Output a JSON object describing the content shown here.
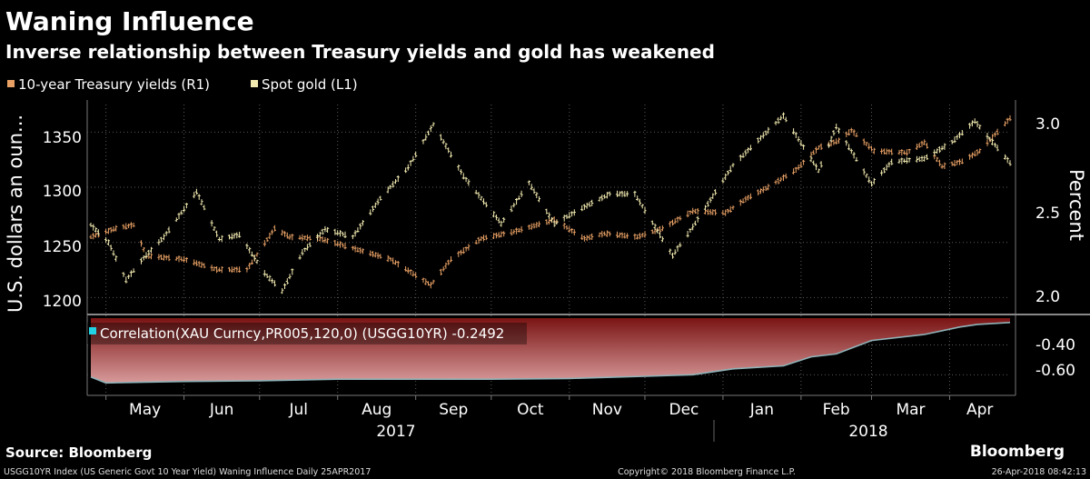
{
  "header": {
    "title": "Waning Influence",
    "subtitle": "Inverse relationship between Treasury yields and gold has weakened"
  },
  "legend": {
    "items": [
      {
        "label": "10-year Treasury yields (R1)",
        "color": "#e8a065"
      },
      {
        "label": "Spot gold (L1)",
        "color": "#f2eab0"
      }
    ]
  },
  "colors": {
    "background": "#000000",
    "yields": "#e8a065",
    "gold": "#f2eab0",
    "correlation_fill": "#7a1414",
    "correlation_line": "#8fb3b8",
    "correlation_marker": "#22d3e6",
    "grid": "#5a5a5a",
    "axis_text": "#ffffff"
  },
  "footer": {
    "source": "Source: Bloomberg",
    "index_line": "USGG10YR Index (US Generic Govt 10 Year Yield) Waning Influence  Daily 25APR2017",
    "copyright": "Copyright© 2018 Bloomberg Finance L.P.",
    "timestamp": "26-Apr-2018 08:42:13",
    "brand": "Bloomberg"
  },
  "chart_data": [
    {
      "type": "line",
      "title": "Waning Influence",
      "ylabel_left": "U.S. dollars an oun...",
      "ylabel_right": "Percent",
      "ylim_left": [
        1188,
        1375
      ],
      "ylim_right": [
        1.9,
        3.1
      ],
      "yticks_left": [
        "1200",
        "1250",
        "1300",
        "1350"
      ],
      "yticks_right": [
        "2.0",
        "2.5",
        "3.0"
      ],
      "x_start": "2017-04-25",
      "x_end": "2018-04-25",
      "month_labels": [
        "May",
        "Jun",
        "Jul",
        "Aug",
        "Sep",
        "Oct",
        "Nov",
        "Dec",
        "Jan",
        "Feb",
        "Mar",
        "Apr"
      ],
      "year_labels": [
        "2017",
        "2018"
      ],
      "series": [
        {
          "name": "10-year Treasury yields (R1)",
          "axis": "right",
          "points": [
            [
              "2017-04-25",
              2.33
            ],
            [
              "2017-05-05",
              2.38
            ],
            [
              "2017-05-12",
              2.4
            ],
            [
              "2017-05-17",
              2.22
            ],
            [
              "2017-06-01",
              2.2
            ],
            [
              "2017-06-14",
              2.14
            ],
            [
              "2017-06-26",
              2.14
            ],
            [
              "2017-07-07",
              2.38
            ],
            [
              "2017-07-13",
              2.33
            ],
            [
              "2017-07-25",
              2.32
            ],
            [
              "2017-08-08",
              2.26
            ],
            [
              "2017-08-22",
              2.2
            ],
            [
              "2017-09-07",
              2.05
            ],
            [
              "2017-09-15",
              2.2
            ],
            [
              "2017-09-27",
              2.32
            ],
            [
              "2017-10-10",
              2.36
            ],
            [
              "2017-10-26",
              2.43
            ],
            [
              "2017-11-07",
              2.32
            ],
            [
              "2017-11-15",
              2.35
            ],
            [
              "2017-11-28",
              2.33
            ],
            [
              "2017-12-08",
              2.38
            ],
            [
              "2017-12-20",
              2.48
            ],
            [
              "2018-01-02",
              2.47
            ],
            [
              "2018-01-10",
              2.55
            ],
            [
              "2018-01-19",
              2.62
            ],
            [
              "2018-01-30",
              2.72
            ],
            [
              "2018-02-08",
              2.85
            ],
            [
              "2018-02-16",
              2.89
            ],
            [
              "2018-02-21",
              2.95
            ],
            [
              "2018-03-02",
              2.83
            ],
            [
              "2018-03-15",
              2.82
            ],
            [
              "2018-03-22",
              2.88
            ],
            [
              "2018-03-29",
              2.74
            ],
            [
              "2018-04-06",
              2.77
            ],
            [
              "2018-04-13",
              2.83
            ],
            [
              "2018-04-25",
              3.02
            ]
          ]
        },
        {
          "name": "Spot gold (L1)",
          "axis": "left",
          "points": [
            [
              "2017-04-25",
              1266
            ],
            [
              "2017-05-02",
              1250
            ],
            [
              "2017-05-09",
              1216
            ],
            [
              "2017-05-16",
              1236
            ],
            [
              "2017-05-24",
              1255
            ],
            [
              "2017-06-06",
              1296
            ],
            [
              "2017-06-15",
              1253
            ],
            [
              "2017-06-23",
              1257
            ],
            [
              "2017-07-03",
              1222
            ],
            [
              "2017-07-10",
              1206
            ],
            [
              "2017-07-18",
              1241
            ],
            [
              "2017-07-27",
              1262
            ],
            [
              "2017-08-07",
              1255
            ],
            [
              "2017-08-18",
              1290
            ],
            [
              "2017-08-29",
              1318
            ],
            [
              "2017-09-08",
              1357
            ],
            [
              "2017-09-20",
              1310
            ],
            [
              "2017-10-05",
              1267
            ],
            [
              "2017-10-16",
              1304
            ],
            [
              "2017-10-26",
              1267
            ],
            [
              "2017-11-06",
              1281
            ],
            [
              "2017-11-17",
              1294
            ],
            [
              "2017-11-27",
              1294
            ],
            [
              "2017-12-12",
              1238
            ],
            [
              "2017-12-20",
              1264
            ],
            [
              "2018-01-05",
              1320
            ],
            [
              "2018-01-25",
              1365
            ],
            [
              "2018-02-08",
              1315
            ],
            [
              "2018-02-15",
              1355
            ],
            [
              "2018-03-01",
              1303
            ],
            [
              "2018-03-09",
              1323
            ],
            [
              "2018-03-22",
              1326
            ],
            [
              "2018-04-02",
              1341
            ],
            [
              "2018-04-11",
              1360
            ],
            [
              "2018-04-25",
              1322
            ]
          ]
        }
      ]
    },
    {
      "type": "area",
      "legend_label": "Correlation(XAU Curncy,PR005,120,0) (USGG10YR) -0.2492",
      "ylim": [
        -0.72,
        -0.22
      ],
      "yticks": [
        "-0.40",
        "-0.60"
      ],
      "points": [
        [
          "2017-04-25",
          -0.615
        ],
        [
          "2017-05-01",
          -0.655
        ],
        [
          "2017-06-01",
          -0.645
        ],
        [
          "2017-07-01",
          -0.64
        ],
        [
          "2017-08-01",
          -0.63
        ],
        [
          "2017-09-01",
          -0.63
        ],
        [
          "2017-10-01",
          -0.63
        ],
        [
          "2017-11-01",
          -0.625
        ],
        [
          "2017-12-01",
          -0.61
        ],
        [
          "2017-12-20",
          -0.6
        ],
        [
          "2018-01-05",
          -0.56
        ],
        [
          "2018-01-25",
          -0.54
        ],
        [
          "2018-02-05",
          -0.48
        ],
        [
          "2018-02-15",
          -0.46
        ],
        [
          "2018-03-01",
          -0.37
        ],
        [
          "2018-03-22",
          -0.33
        ],
        [
          "2018-04-05",
          -0.28
        ],
        [
          "2018-04-12",
          -0.262
        ],
        [
          "2018-04-25",
          -0.249
        ]
      ]
    }
  ]
}
